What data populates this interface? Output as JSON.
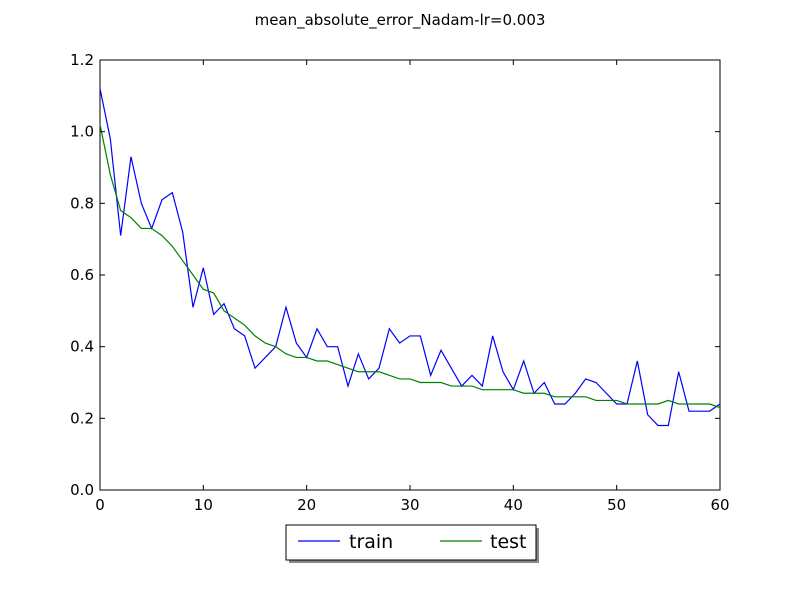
{
  "chart_data": {
    "type": "line",
    "title": "mean_absolute_error_Nadam-lr=0.003",
    "xlabel": "",
    "ylabel": "",
    "xlim": [
      0,
      60
    ],
    "ylim": [
      0.0,
      1.2
    ],
    "xticks": [
      0,
      10,
      20,
      30,
      40,
      50,
      60
    ],
    "yticks": [
      0.0,
      0.2,
      0.4,
      0.6,
      0.8,
      1.0,
      1.2
    ],
    "xtick_labels": [
      "0",
      "10",
      "20",
      "30",
      "40",
      "50",
      "60"
    ],
    "ytick_labels": [
      "0.0",
      "0.2",
      "0.4",
      "0.6",
      "0.8",
      "1.0",
      "1.2"
    ],
    "grid": false,
    "legend_placement": "bottom-center",
    "series": [
      {
        "name": "train",
        "color": "#0000ff",
        "x": [
          0,
          1,
          2,
          3,
          4,
          5,
          6,
          7,
          8,
          9,
          10,
          11,
          12,
          13,
          14,
          15,
          16,
          17,
          18,
          19,
          20,
          21,
          22,
          23,
          24,
          25,
          26,
          27,
          28,
          29,
          30,
          31,
          32,
          33,
          34,
          35,
          36,
          37,
          38,
          39,
          40,
          41,
          42,
          43,
          44,
          45,
          46,
          47,
          48,
          49,
          50,
          51,
          52,
          53,
          54,
          55,
          56,
          57,
          58,
          59,
          60
        ],
        "values": [
          1.12,
          0.98,
          0.71,
          0.93,
          0.8,
          0.73,
          0.81,
          0.83,
          0.72,
          0.51,
          0.62,
          0.49,
          0.52,
          0.45,
          0.43,
          0.34,
          0.37,
          0.4,
          0.51,
          0.41,
          0.37,
          0.45,
          0.4,
          0.4,
          0.29,
          0.38,
          0.31,
          0.34,
          0.45,
          0.41,
          0.43,
          0.43,
          0.32,
          0.39,
          0.34,
          0.29,
          0.32,
          0.29,
          0.43,
          0.33,
          0.28,
          0.36,
          0.27,
          0.3,
          0.24,
          0.24,
          0.27,
          0.31,
          0.3,
          0.27,
          0.24,
          0.24,
          0.36,
          0.21,
          0.18,
          0.18,
          0.33,
          0.22,
          0.22,
          0.22,
          0.24
        ]
      },
      {
        "name": "test",
        "color": "#008000",
        "x": [
          0,
          1,
          2,
          3,
          4,
          5,
          6,
          7,
          8,
          9,
          10,
          11,
          12,
          13,
          14,
          15,
          16,
          17,
          18,
          19,
          20,
          21,
          22,
          23,
          24,
          25,
          26,
          27,
          28,
          29,
          30,
          31,
          32,
          33,
          34,
          35,
          36,
          37,
          38,
          39,
          40,
          41,
          42,
          43,
          44,
          45,
          46,
          47,
          48,
          49,
          50,
          51,
          52,
          53,
          54,
          55,
          56,
          57,
          58,
          59,
          60
        ],
        "values": [
          1.02,
          0.88,
          0.78,
          0.76,
          0.73,
          0.73,
          0.71,
          0.68,
          0.64,
          0.6,
          0.56,
          0.55,
          0.5,
          0.48,
          0.46,
          0.43,
          0.41,
          0.4,
          0.38,
          0.37,
          0.37,
          0.36,
          0.36,
          0.35,
          0.34,
          0.33,
          0.33,
          0.33,
          0.32,
          0.31,
          0.31,
          0.3,
          0.3,
          0.3,
          0.29,
          0.29,
          0.29,
          0.28,
          0.28,
          0.28,
          0.28,
          0.27,
          0.27,
          0.27,
          0.26,
          0.26,
          0.26,
          0.26,
          0.25,
          0.25,
          0.25,
          0.24,
          0.24,
          0.24,
          0.24,
          0.25,
          0.24,
          0.24,
          0.24,
          0.24,
          0.23
        ]
      }
    ]
  }
}
